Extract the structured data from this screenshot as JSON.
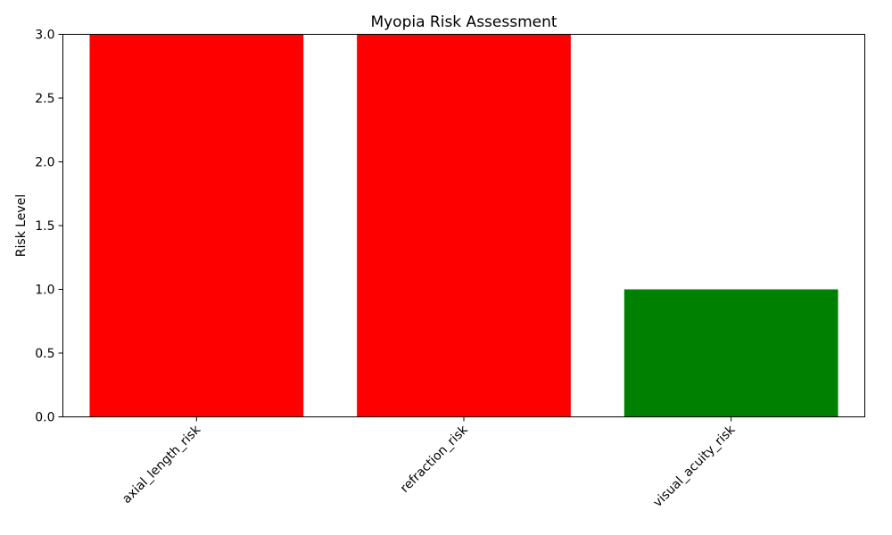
{
  "chart_data": {
    "type": "bar",
    "title": "Myopia Risk Assessment",
    "xlabel": "",
    "ylabel": "Risk Level",
    "categories": [
      "axial_length_risk",
      "refraction_risk",
      "visual_acuity_risk"
    ],
    "values": [
      3,
      3,
      1
    ],
    "bar_colors": [
      "#ff0000",
      "#ff0000",
      "#008000"
    ],
    "ylim": [
      0,
      3
    ],
    "yticks": [
      0.0,
      0.5,
      1.0,
      1.5,
      2.0,
      2.5,
      3.0
    ],
    "ytick_labels": [
      "0.0",
      "0.5",
      "1.0",
      "1.5",
      "2.0",
      "2.5",
      "3.0"
    ],
    "grid": false,
    "legend": "none"
  }
}
